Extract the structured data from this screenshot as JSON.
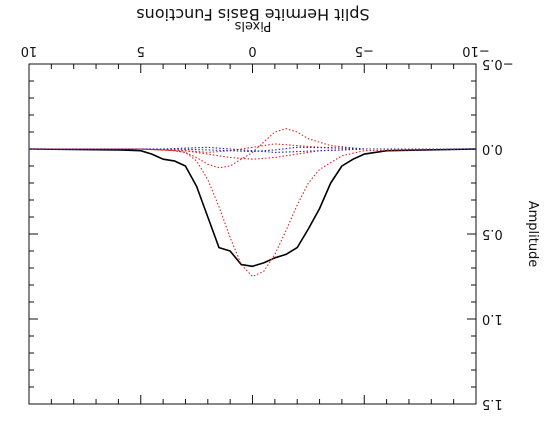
{
  "chart_data": {
    "type": "line",
    "title": "Split Hermite Basis Functions",
    "xlabel": "Pixels",
    "ylabel": "Amplitude",
    "xlim": [
      -10,
      10
    ],
    "ylim": [
      -0.5,
      1.5
    ],
    "x_ticks": [
      -10,
      -5,
      0,
      5,
      10
    ],
    "x_tick_labels": [
      "−10",
      "−5",
      "0",
      "5",
      "10"
    ],
    "y_ticks": [
      -0.5,
      0.0,
      0.5,
      1.0,
      1.5
    ],
    "y_tick_labels": [
      "−0.5",
      "0.0",
      "0.5",
      "1.0",
      "1.5"
    ],
    "orientation": "rotated 180 degrees",
    "colors": {
      "total": "#000000",
      "component": "#e02020",
      "basis": "#2020c0"
    },
    "series": [
      {
        "style": "solid",
        "color": "#000000",
        "x": [
          -10,
          -6,
          -5,
          -4.5,
          -4,
          -3.5,
          -3,
          -2.5,
          -2,
          -1.5,
          -1,
          -0.5,
          0,
          0.5,
          1,
          1.5,
          2,
          2.5,
          3,
          3.5,
          4,
          4.5,
          5,
          6,
          10
        ],
        "y": [
          0,
          0.01,
          0.03,
          0.06,
          0.1,
          0.2,
          0.35,
          0.47,
          0.58,
          0.62,
          0.64,
          0.67,
          0.69,
          0.68,
          0.6,
          0.58,
          0.4,
          0.22,
          0.1,
          0.07,
          0.06,
          0.03,
          0.01,
          0.005,
          0
        ]
      },
      {
        "style": "dotted",
        "color": "#e02020",
        "x": [
          -10,
          -5,
          -4,
          -3,
          -2.5,
          -2,
          -1.5,
          -1,
          -0.5,
          0,
          0.5,
          1,
          1.5,
          2,
          2.5,
          3,
          3.5,
          4,
          5,
          10
        ],
        "y": [
          0,
          0.01,
          0.04,
          0.12,
          0.2,
          0.33,
          0.48,
          0.62,
          0.72,
          0.75,
          0.68,
          0.52,
          0.34,
          0.18,
          0.07,
          0.02,
          0.01,
          0.005,
          0,
          0
        ]
      },
      {
        "style": "dotted",
        "color": "#e02020",
        "x": [
          -10,
          -5,
          -3.5,
          -2.5,
          -2,
          -1.5,
          -1,
          -0.5,
          0,
          0.5,
          1,
          1.5,
          2,
          2.5,
          3,
          3.5,
          5,
          10
        ],
        "y": [
          0,
          0,
          -0.02,
          -0.06,
          -0.1,
          -0.12,
          -0.1,
          -0.04,
          0.02,
          0.06,
          0.1,
          0.11,
          0.09,
          0.05,
          0.02,
          0.01,
          0,
          0
        ]
      },
      {
        "style": "dotted",
        "color": "#e02020",
        "x": [
          -10,
          -5,
          -4,
          -3,
          -2,
          -1,
          0,
          1,
          2,
          3,
          4,
          5,
          10
        ],
        "y": [
          0,
          0,
          0.005,
          0.01,
          0.03,
          0.05,
          0.06,
          0.05,
          0.03,
          0.01,
          0.005,
          0,
          0
        ]
      },
      {
        "style": "dotted",
        "color": "#e02020",
        "x": [
          -10,
          -5,
          -4,
          -3,
          -2,
          -1,
          0,
          1,
          2,
          3,
          4,
          5,
          10
        ],
        "y": [
          0,
          0,
          -0.005,
          -0.01,
          -0.02,
          -0.03,
          -0.01,
          0.01,
          0.02,
          0.01,
          0.005,
          0,
          0
        ]
      },
      {
        "style": "dotted",
        "color": "#2020c0",
        "x": [
          -10,
          -5,
          -4,
          -3,
          -2,
          -1,
          0,
          1,
          2,
          3,
          4,
          5,
          10
        ],
        "y": [
          0,
          0,
          0.005,
          0.01,
          0.015,
          0.02,
          0.01,
          0.0,
          -0.01,
          -0.005,
          0,
          0,
          0
        ]
      },
      {
        "style": "dotted",
        "color": "#2020c0",
        "x": [
          -10,
          -5,
          -4,
          -3,
          -2,
          -1,
          0,
          1,
          2,
          3,
          4,
          5,
          10
        ],
        "y": [
          0,
          0,
          -0.005,
          -0.008,
          -0.01,
          0.005,
          0.015,
          0.01,
          0.005,
          0.002,
          0,
          0,
          0
        ]
      }
    ]
  }
}
